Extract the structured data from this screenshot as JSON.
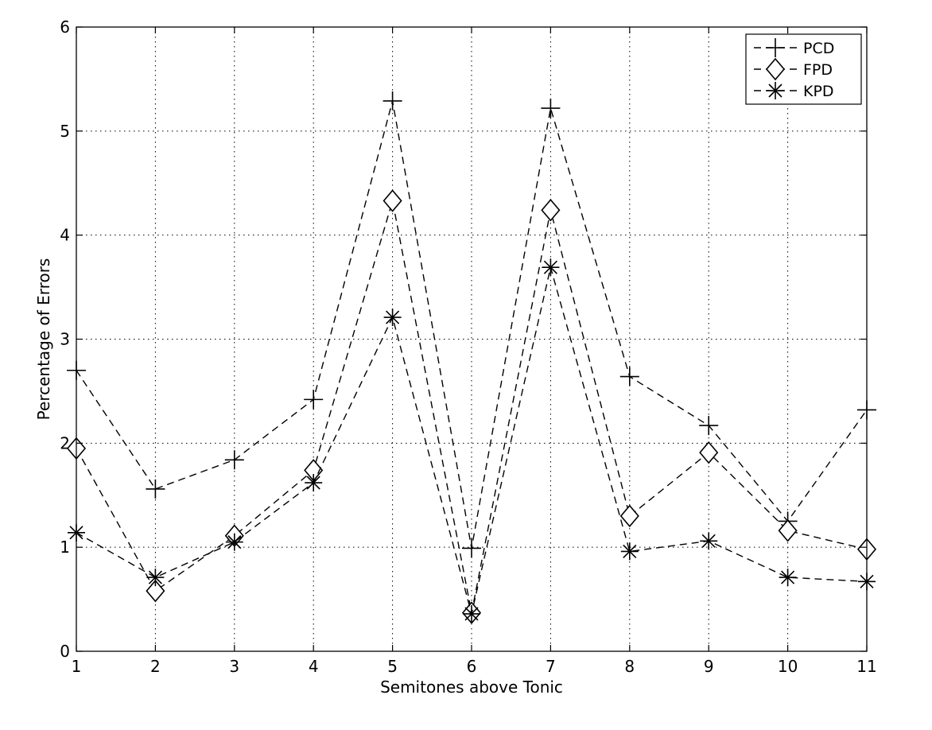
{
  "chart_data": {
    "type": "line",
    "title": "",
    "xlabel": "Semitones above Tonic",
    "ylabel": "Percentage of Errors",
    "x": [
      1,
      2,
      3,
      4,
      5,
      6,
      7,
      8,
      9,
      10,
      11
    ],
    "xlim": [
      1,
      11
    ],
    "ylim": [
      0,
      6
    ],
    "xticks": [
      "1",
      "2",
      "3",
      "4",
      "5",
      "6",
      "7",
      "8",
      "9",
      "10",
      "11"
    ],
    "yticks": [
      "0",
      "1",
      "2",
      "3",
      "4",
      "5",
      "6"
    ],
    "grid": true,
    "legend_position": "top-right",
    "series": [
      {
        "name": "PCD",
        "marker": "plus",
        "line_style": "dashed",
        "color": "#000000",
        "values": [
          2.7,
          1.56,
          1.84,
          2.42,
          5.29,
          0.99,
          5.22,
          2.64,
          2.17,
          1.25,
          2.32
        ]
      },
      {
        "name": "FPD",
        "marker": "diamond",
        "line_style": "dashed",
        "color": "#000000",
        "values": [
          1.95,
          0.58,
          1.11,
          1.74,
          4.33,
          0.37,
          4.24,
          1.3,
          1.91,
          1.16,
          0.98
        ]
      },
      {
        "name": "KPD",
        "marker": "asterisk",
        "line_style": "dashed",
        "color": "#000000",
        "values": [
          1.14,
          0.71,
          1.05,
          1.62,
          3.21,
          0.36,
          3.69,
          0.96,
          1.06,
          0.71,
          0.67
        ]
      }
    ]
  }
}
